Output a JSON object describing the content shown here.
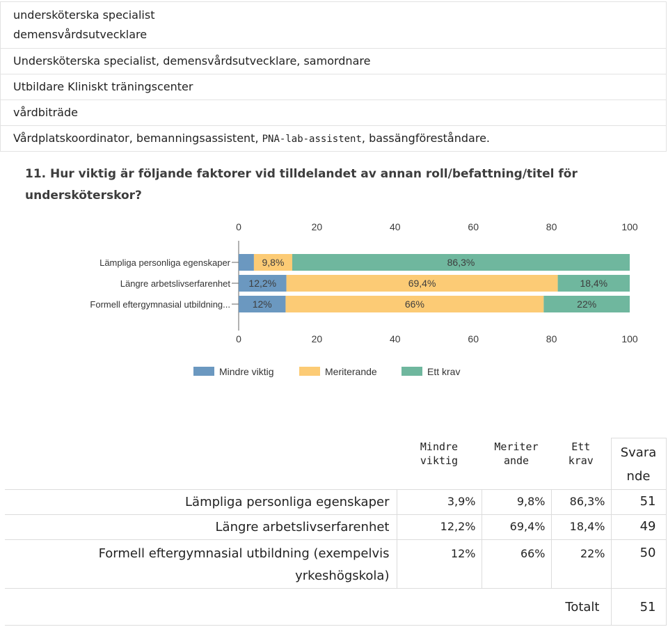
{
  "answers": [
    "undersköterska specialist\ndemensvårdsutvecklare",
    "Undersköterska specialist, demensvårdsutvecklare, samordnare",
    "Utbildare Kliniskt träningscenter",
    "vårdbiträde",
    "Vårdplatskoordinator, bemanningsassistent, PNA-lab-assistent, bassängföreståndare."
  ],
  "answer_line1": "undersköterska specialist",
  "answer_line2": "demensvårdsutvecklare",
  "answer_r2": "Undersköterska specialist, demensvårdsutvecklare, samordnare",
  "answer_r3": "Utbildare Kliniskt träningscenter",
  "answer_r4": "vårdbiträde",
  "answer_r5_a": "Vårdplatskoordinator, bemanningsassistent, ",
  "answer_r5_b": "PNA-lab-assistent",
  "answer_r5_c": ", bassängföreståndare.",
  "chart_data": {
    "type": "bar",
    "orientation": "horizontal",
    "stacked": true,
    "title_line1": "11. Hur viktig är följande faktorer vid tilldelandet av annan roll/befattning/titel för",
    "title_line2": "undersköterskor?",
    "categories": [
      "Lämpliga personliga egenskaper",
      "Längre arbetslivserfarenhet",
      "Formell eftergymnasial utbildning..."
    ],
    "series": [
      {
        "name": "Mindre viktig",
        "color": "#6b98c0",
        "values": [
          3.9,
          12.2,
          12
        ],
        "labels": [
          "",
          "12,2%",
          "12%"
        ]
      },
      {
        "name": "Meriterande",
        "color": "#fccb75",
        "values": [
          9.8,
          69.4,
          66
        ],
        "labels": [
          "9,8%",
          "69,4%",
          "66%"
        ]
      },
      {
        "name": "Ett krav",
        "color": "#6fb79e",
        "values": [
          86.3,
          18.4,
          22
        ],
        "labels": [
          "86,3%",
          "18,4%",
          "22%"
        ]
      }
    ],
    "xlim": [
      0,
      100
    ],
    "ticks": [
      "0",
      "20",
      "40",
      "60",
      "80",
      "100"
    ],
    "legend_position": "bottom",
    "grid": false
  },
  "summary": {
    "headers": {
      "mindre": [
        "Mindre",
        "viktig"
      ],
      "meriter": [
        "Meriter",
        "ande"
      ],
      "krav": [
        "Ett",
        "krav"
      ],
      "svara": [
        "Svara",
        "nde"
      ]
    },
    "rows": [
      {
        "label_lines": [
          "Lämpliga personliga egenskaper"
        ],
        "mindre": "3,9%",
        "meriter": "9,8%",
        "krav": "86,3%",
        "svarande": "51"
      },
      {
        "label_lines": [
          "Längre arbetslivserfarenhet"
        ],
        "mindre": "12,2%",
        "meriter": "69,4%",
        "krav": "18,4%",
        "svarande": "49"
      },
      {
        "label_lines": [
          "Formell eftergymnasial utbildning (exempelvis",
          "yrkeshögskola)"
        ],
        "mindre": "12%",
        "meriter": "66%",
        "krav": "22%",
        "svarande": "50"
      }
    ],
    "total_label": "Totalt",
    "total_value": "51"
  }
}
